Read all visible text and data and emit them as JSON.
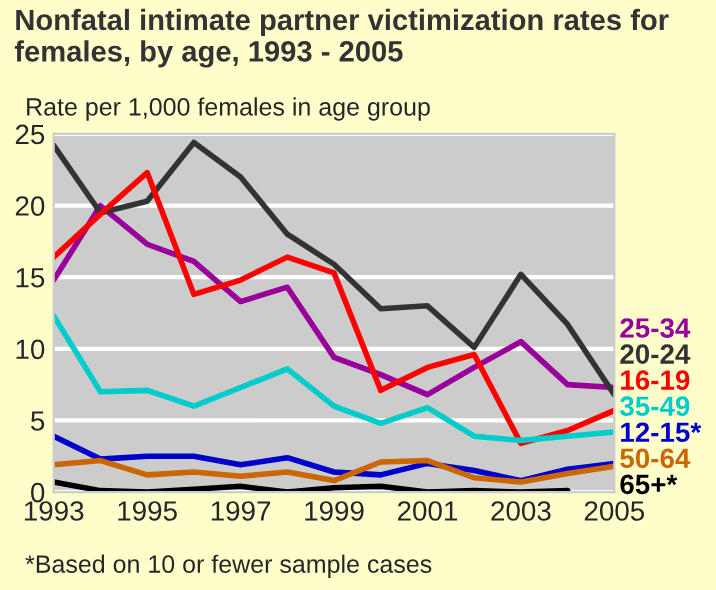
{
  "chart_data": {
    "type": "line",
    "title": "Nonfatal intimate partner victimization rates for females, by age, 1993 - 2005",
    "subtitle": "Rate per 1,000 females in age group",
    "x": [
      1993,
      1994,
      1995,
      1996,
      1997,
      1998,
      1999,
      2000,
      2001,
      2002,
      2003,
      2004,
      2005
    ],
    "series": [
      {
        "name": "25-34",
        "color": "#990099",
        "values": [
          14.8,
          20.0,
          17.3,
          16.1,
          13.3,
          14.3,
          9.4,
          8.2,
          6.8,
          8.7,
          10.5,
          7.5,
          7.3
        ]
      },
      {
        "name": "20-24",
        "color": "#333333",
        "values": [
          24.2,
          19.5,
          20.3,
          24.4,
          22.0,
          18.0,
          15.9,
          12.8,
          13.0,
          10.1,
          15.2,
          11.7,
          6.8
        ]
      },
      {
        "name": "16-19",
        "color": "#ff0000",
        "values": [
          16.4,
          19.4,
          22.3,
          13.8,
          14.8,
          16.4,
          15.3,
          7.1,
          8.7,
          9.6,
          3.4,
          4.3,
          5.7
        ]
      },
      {
        "name": "35-49",
        "color": "#00cccc",
        "values": [
          12.3,
          7.0,
          7.1,
          6.0,
          7.3,
          8.6,
          6.0,
          4.8,
          5.9,
          3.9,
          3.6,
          3.9,
          4.2
        ]
      },
      {
        "name": "12-15*",
        "color": "#0000cc",
        "values": [
          3.9,
          2.3,
          2.5,
          2.5,
          1.9,
          2.4,
          1.4,
          1.2,
          2.0,
          1.5,
          0.8,
          1.6,
          2.0
        ]
      },
      {
        "name": "50-64",
        "color": "#cc6600",
        "values": [
          1.9,
          2.2,
          1.2,
          1.4,
          1.1,
          1.4,
          0.8,
          2.1,
          2.2,
          1.0,
          0.7,
          1.3,
          1.8
        ]
      },
      {
        "name": "65+*",
        "color": "#000000",
        "values": [
          0.7,
          0.1,
          0.0,
          0.2,
          0.4,
          0.0,
          0.3,
          0.4,
          0.0,
          0.1,
          0.0,
          0.1,
          null
        ]
      }
    ],
    "xlim": [
      1993,
      2005
    ],
    "xticks": [
      1993,
      1995,
      1997,
      1999,
      2001,
      2003,
      2005
    ],
    "ylim": [
      0,
      25
    ],
    "yticks": [
      0,
      5,
      10,
      15,
      20,
      25
    ],
    "grid": "y",
    "legend": "right",
    "marker": "none",
    "line_style": "solid",
    "annotations": [
      "*Based on 10 or fewer sample cases"
    ]
  }
}
